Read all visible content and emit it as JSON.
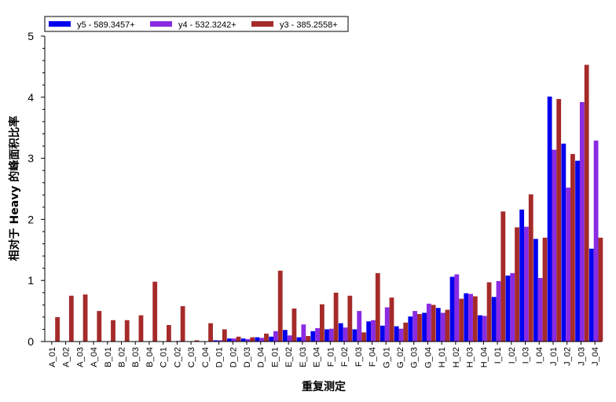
{
  "chart_data": {
    "type": "bar",
    "xlabel": "重复测定",
    "ylabel": "相对于 Heavy 的峰面积比率",
    "ylim": [
      0,
      5
    ],
    "yticks": [
      0,
      1,
      2,
      3,
      4,
      5
    ],
    "grid": false,
    "legend_position": "top-left",
    "categories": [
      "A_01",
      "A_02",
      "A_03",
      "A_04",
      "B_01",
      "B_02",
      "B_03",
      "B_04",
      "C_01",
      "C_02",
      "C_03",
      "C_04",
      "D_01",
      "D_02",
      "D_03",
      "D_04",
      "E_01",
      "E_02",
      "E_03",
      "E_04",
      "F_01",
      "F_02",
      "F_03",
      "F_04",
      "G_01",
      "G_02",
      "G_03",
      "G_04",
      "H_01",
      "H_02",
      "H_03",
      "H_04",
      "I_01",
      "I_02",
      "I_03",
      "I_04",
      "J_01",
      "J_02",
      "J_03",
      "J_04"
    ],
    "series": [
      {
        "name": "y5 - 589.3457+",
        "color": "#0000ee",
        "values": [
          0.0,
          0.0,
          0.0,
          0.0,
          0.0,
          0.0,
          0.0,
          0.0,
          0.0,
          0.0,
          0.0,
          0.0,
          0.02,
          0.05,
          0.05,
          0.07,
          0.08,
          0.19,
          0.07,
          0.17,
          0.2,
          0.3,
          0.2,
          0.33,
          0.26,
          0.25,
          0.41,
          0.47,
          0.55,
          1.06,
          0.79,
          0.43,
          0.73,
          1.08,
          2.16,
          1.68,
          4.01,
          3.24,
          2.96,
          1.52
        ]
      },
      {
        "name": "y4 - 532.3242+",
        "color": "#8a2be2",
        "values": [
          0.0,
          0.0,
          0.0,
          0.0,
          0.0,
          0.0,
          0.0,
          0.0,
          0.0,
          0.01,
          0.0,
          0.0,
          0.02,
          0.05,
          0.04,
          0.06,
          0.17,
          0.1,
          0.28,
          0.22,
          0.21,
          0.23,
          0.5,
          0.35,
          0.56,
          0.21,
          0.5,
          0.62,
          0.47,
          1.1,
          0.78,
          0.42,
          0.99,
          1.12,
          1.88,
          1.04,
          3.14,
          2.52,
          3.92,
          3.29
        ]
      },
      {
        "name": "y3 - 385.2558+",
        "color": "#a52a2a",
        "values": [
          0.4,
          0.75,
          0.77,
          0.5,
          0.35,
          0.35,
          0.43,
          0.98,
          0.27,
          0.58,
          0.02,
          0.3,
          0.2,
          0.08,
          0.07,
          0.13,
          1.16,
          0.54,
          0.09,
          0.61,
          0.8,
          0.75,
          0.15,
          1.12,
          0.72,
          0.31,
          0.45,
          0.6,
          0.52,
          0.7,
          0.74,
          0.97,
          2.13,
          1.87,
          2.41,
          1.7,
          3.97,
          3.07,
          4.53,
          1.7
        ]
      }
    ]
  }
}
